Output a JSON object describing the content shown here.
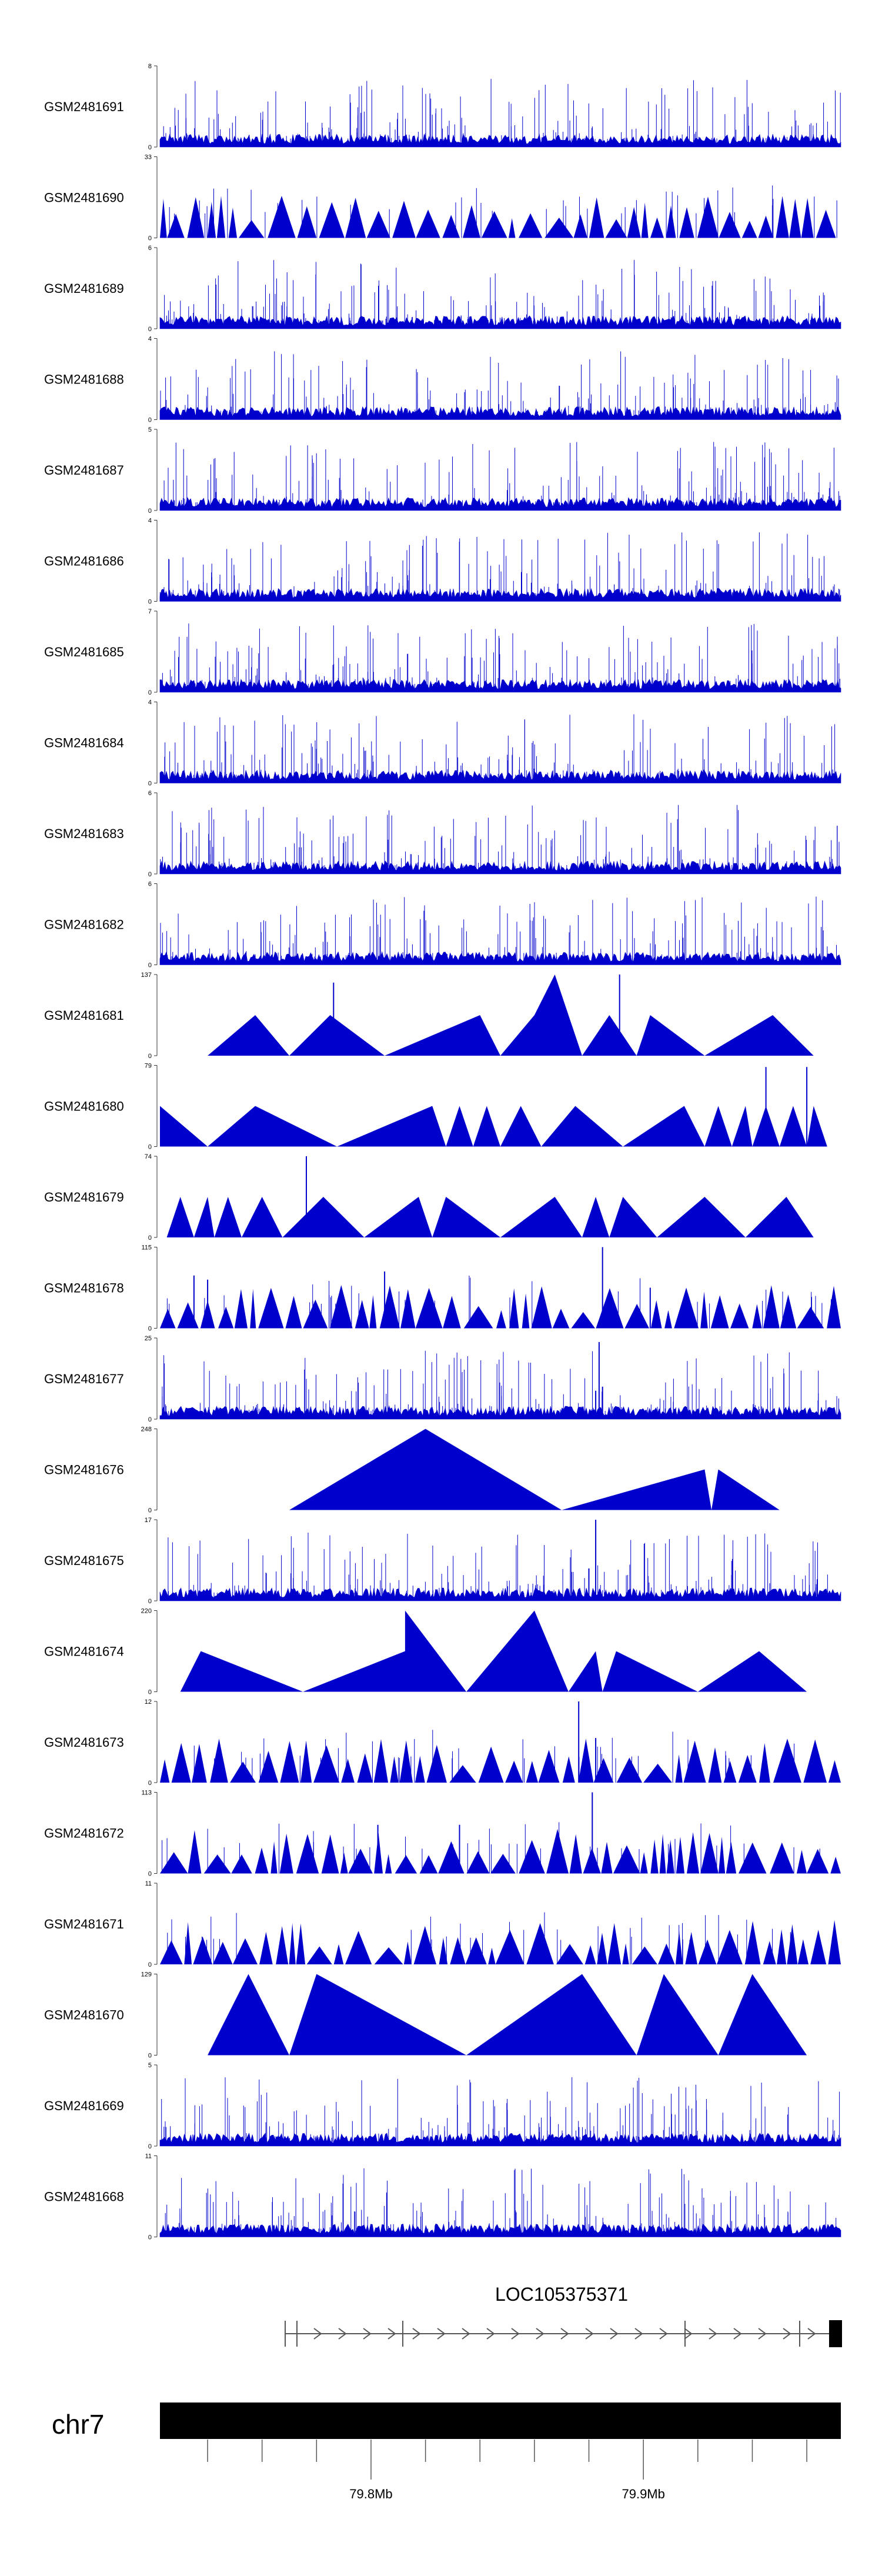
{
  "chart_data": {
    "type": "area",
    "tracks": [
      {
        "name": "GSM2481691",
        "ymax": 8,
        "style": "spiky",
        "seed": 91
      },
      {
        "name": "GSM2481690",
        "ymax": 33,
        "style": "tri",
        "seed": 90
      },
      {
        "name": "GSM2481689",
        "ymax": 6,
        "style": "spiky",
        "seed": 89
      },
      {
        "name": "GSM2481688",
        "ymax": 4,
        "style": "spiky",
        "seed": 88
      },
      {
        "name": "GSM2481687",
        "ymax": 5,
        "style": "spiky",
        "seed": 87
      },
      {
        "name": "GSM2481686",
        "ymax": 4,
        "style": "spiky",
        "seed": 86
      },
      {
        "name": "GSM2481685",
        "ymax": 7,
        "style": "spiky",
        "seed": 85
      },
      {
        "name": "GSM2481684",
        "ymax": 4,
        "style": "spiky",
        "seed": 84
      },
      {
        "name": "GSM2481683",
        "ymax": 6,
        "style": "spiky",
        "seed": 83
      },
      {
        "name": "GSM2481682",
        "ymax": 6,
        "style": "spiky",
        "seed": 82
      },
      {
        "name": "GSM2481681",
        "ymax": 137,
        "style": "peaks",
        "points": [
          [
            0.07,
            0
          ],
          [
            0.14,
            0.5
          ],
          [
            0.19,
            0
          ],
          [
            0.25,
            0.5
          ],
          [
            0.33,
            0
          ],
          [
            0.47,
            0.5
          ],
          [
            0.5,
            0
          ],
          [
            0.55,
            0.5
          ],
          [
            0.58,
            1
          ],
          [
            0.62,
            0
          ],
          [
            0.66,
            0.5
          ],
          [
            0.7,
            0
          ],
          [
            0.72,
            0.5
          ],
          [
            0.8,
            0
          ],
          [
            0.9,
            0.5
          ],
          [
            0.96,
            0
          ]
        ],
        "spikes": [
          [
            0.255,
            0.9
          ],
          [
            0.675,
            1.0
          ]
        ]
      },
      {
        "name": "GSM2481680",
        "ymax": 79,
        "style": "peaks",
        "points": [
          [
            0.0,
            0.5
          ],
          [
            0.07,
            0
          ],
          [
            0.14,
            0.5
          ],
          [
            0.26,
            0
          ],
          [
            0.4,
            0.5
          ],
          [
            0.42,
            0
          ],
          [
            0.44,
            0.5
          ],
          [
            0.46,
            0
          ],
          [
            0.48,
            0.5
          ],
          [
            0.5,
            0
          ],
          [
            0.53,
            0.5
          ],
          [
            0.56,
            0
          ],
          [
            0.61,
            0.5
          ],
          [
            0.68,
            0
          ],
          [
            0.77,
            0.5
          ],
          [
            0.8,
            0
          ],
          [
            0.82,
            0.5
          ],
          [
            0.84,
            0
          ],
          [
            0.86,
            0.5
          ],
          [
            0.87,
            0
          ],
          [
            0.89,
            0.5
          ],
          [
            0.91,
            0
          ],
          [
            0.93,
            0.5
          ],
          [
            0.95,
            0
          ],
          [
            0.96,
            0.5
          ],
          [
            0.98,
            0
          ]
        ],
        "spikes": [
          [
            0.89,
            0.98
          ],
          [
            0.95,
            0.98
          ]
        ]
      },
      {
        "name": "GSM2481679",
        "ymax": 74,
        "style": "peaks",
        "points": [
          [
            0.01,
            0
          ],
          [
            0.03,
            0.5
          ],
          [
            0.05,
            0
          ],
          [
            0.07,
            0.5
          ],
          [
            0.08,
            0
          ],
          [
            0.1,
            0.5
          ],
          [
            0.12,
            0
          ],
          [
            0.15,
            0.5
          ],
          [
            0.18,
            0
          ],
          [
            0.24,
            0.5
          ],
          [
            0.3,
            0
          ],
          [
            0.38,
            0.5
          ],
          [
            0.4,
            0
          ],
          [
            0.42,
            0.5
          ],
          [
            0.5,
            0
          ],
          [
            0.58,
            0.5
          ],
          [
            0.62,
            0
          ],
          [
            0.64,
            0.5
          ],
          [
            0.66,
            0
          ],
          [
            0.68,
            0.5
          ],
          [
            0.73,
            0
          ],
          [
            0.8,
            0.5
          ],
          [
            0.86,
            0
          ],
          [
            0.92,
            0.5
          ],
          [
            0.96,
            0
          ]
        ],
        "spikes": [
          [
            0.215,
            1.0
          ]
        ]
      },
      {
        "name": "GSM2481678",
        "ymax": 115,
        "style": "tri",
        "seed": 78,
        "spikes": [
          [
            0.05,
            0.65
          ],
          [
            0.07,
            0.6
          ],
          [
            0.33,
            0.7
          ],
          [
            0.65,
            1.0
          ],
          [
            0.72,
            0.5
          ]
        ]
      },
      {
        "name": "GSM2481677",
        "ymax": 25,
        "style": "spiky",
        "seed": 77,
        "spikes": [
          [
            0.64,
            0.35
          ],
          [
            0.645,
            0.95
          ],
          [
            0.65,
            0.4
          ]
        ]
      },
      {
        "name": "GSM2481676",
        "ymax": 248,
        "style": "peaks",
        "points": [
          [
            0.19,
            0
          ],
          [
            0.39,
            1.0
          ],
          [
            0.59,
            0
          ],
          [
            0.8,
            0.5
          ],
          [
            0.81,
            0
          ],
          [
            0.82,
            0.5
          ],
          [
            0.91,
            0
          ]
        ]
      },
      {
        "name": "GSM2481675",
        "ymax": 17,
        "style": "spiky",
        "seed": 75,
        "spikes": [
          [
            0.64,
            1.0
          ],
          [
            0.63,
            0.4
          ]
        ]
      },
      {
        "name": "GSM2481674",
        "ymax": 220,
        "style": "peaks",
        "points": [
          [
            0.03,
            0
          ],
          [
            0.06,
            0.5
          ],
          [
            0.21,
            0
          ],
          [
            0.36,
            0.5
          ],
          [
            0.36,
            1.0
          ],
          [
            0.45,
            0
          ],
          [
            0.55,
            1.0
          ],
          [
            0.6,
            0
          ],
          [
            0.64,
            0.5
          ],
          [
            0.65,
            0
          ],
          [
            0.67,
            0.5
          ],
          [
            0.79,
            0
          ],
          [
            0.88,
            0.5
          ],
          [
            0.95,
            0
          ]
        ]
      },
      {
        "name": "GSM2481673",
        "ymax": 12,
        "style": "tri",
        "seed": 73,
        "spikes": [
          [
            0.615,
            1.0
          ],
          [
            0.64,
            0.55
          ]
        ]
      },
      {
        "name": "GSM2481672",
        "ymax": 113,
        "style": "tri",
        "seed": 72,
        "spikes": [
          [
            0.32,
            0.6
          ],
          [
            0.44,
            0.6
          ],
          [
            0.635,
            1.0
          ]
        ]
      },
      {
        "name": "GSM2481671",
        "ymax": 11,
        "style": "tri",
        "seed": 71
      },
      {
        "name": "GSM2481670",
        "ymax": 129,
        "style": "peaks",
        "points": [
          [
            0.07,
            0
          ],
          [
            0.13,
            1.0
          ],
          [
            0.19,
            0
          ],
          [
            0.23,
            1.0
          ],
          [
            0.45,
            0
          ],
          [
            0.62,
            1.0
          ],
          [
            0.7,
            0
          ],
          [
            0.74,
            1.0
          ],
          [
            0.82,
            0
          ],
          [
            0.87,
            1.0
          ],
          [
            0.95,
            0
          ]
        ]
      },
      {
        "name": "GSM2481669",
        "ymax": 5,
        "style": "spiky",
        "seed": 69
      },
      {
        "name": "GSM2481668",
        "ymax": 11,
        "style": "spiky",
        "seed": 68
      }
    ],
    "gene": {
      "label": "LOC105375371",
      "strand": "+"
    },
    "chromosome": {
      "label": "chr7"
    },
    "xaxis": {
      "ticks": [
        {
          "label": "79.8Mb",
          "pos": 0.31
        },
        {
          "label": "79.9Mb",
          "pos": 0.71
        }
      ],
      "minor_ticks": [
        0.07,
        0.15,
        0.23,
        0.39,
        0.47,
        0.55,
        0.63,
        0.79,
        0.87,
        0.95
      ]
    },
    "colors": {
      "track": "#0000cc",
      "axis": "#333333",
      "gene": "#555555",
      "chrom": "#000000"
    }
  }
}
